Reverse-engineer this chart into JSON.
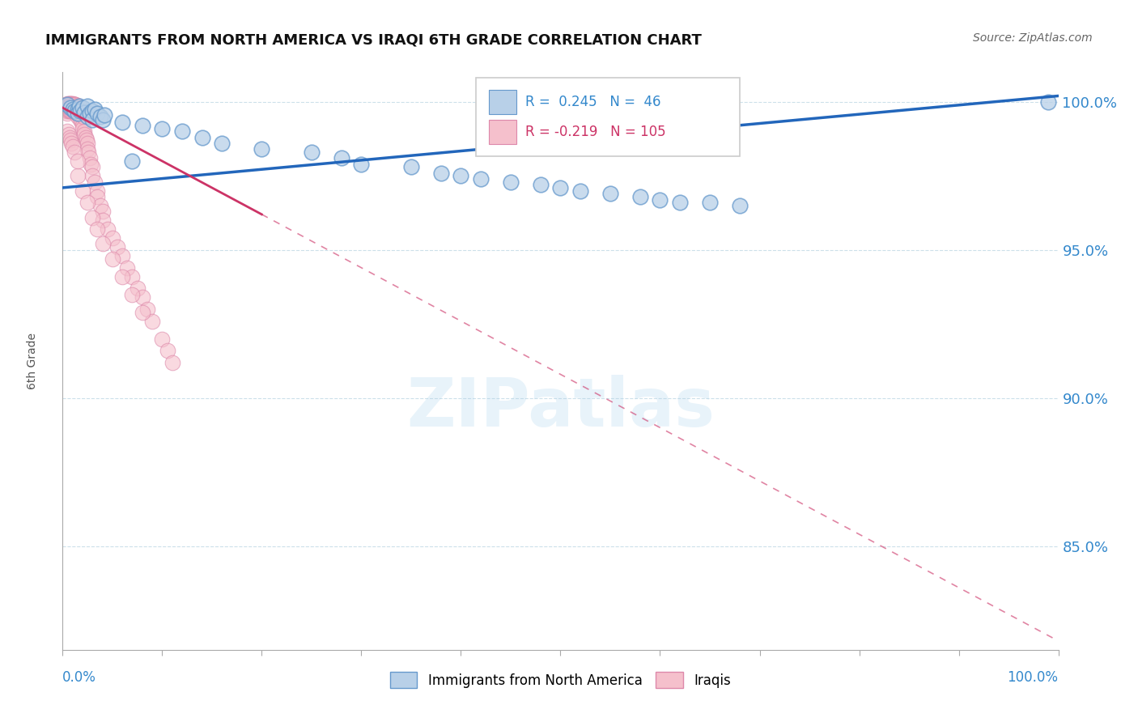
{
  "title": "IMMIGRANTS FROM NORTH AMERICA VS IRAQI 6TH GRADE CORRELATION CHART",
  "source": "Source: ZipAtlas.com",
  "ylabel": "6th Grade",
  "watermark": "ZIPatlas",
  "blue_R": 0.245,
  "blue_N": 46,
  "pink_R": -0.219,
  "pink_N": 105,
  "blue_color": "#b8d0e8",
  "blue_edge": "#6699cc",
  "blue_line_color": "#2266bb",
  "pink_color": "#f5c0cc",
  "pink_edge": "#dd88aa",
  "pink_line_color": "#cc3366",
  "legend_blue_label": "Immigrants from North America",
  "legend_pink_label": "Iraqis",
  "ytick_labels": [
    "100.0%",
    "95.0%",
    "90.0%",
    "85.0%"
  ],
  "ytick_values": [
    1.0,
    0.95,
    0.9,
    0.85
  ],
  "xlim": [
    0.0,
    1.0
  ],
  "ylim": [
    0.815,
    1.01
  ],
  "blue_trend_x0": 0.0,
  "blue_trend_y0": 0.971,
  "blue_trend_x1": 1.0,
  "blue_trend_y1": 1.002,
  "pink_trend_x0": 0.0,
  "pink_trend_y0": 0.998,
  "pink_trend_x1": 1.0,
  "pink_trend_y1": 0.818,
  "blue_scatter_x": [
    0.005,
    0.008,
    0.01,
    0.012,
    0.015,
    0.015,
    0.017,
    0.018,
    0.02,
    0.022,
    0.025,
    0.025,
    0.027,
    0.03,
    0.03,
    0.032,
    0.035,
    0.038,
    0.04,
    0.042,
    0.06,
    0.07,
    0.08,
    0.1,
    0.12,
    0.14,
    0.16,
    0.2,
    0.25,
    0.28,
    0.3,
    0.35,
    0.38,
    0.4,
    0.42,
    0.45,
    0.48,
    0.5,
    0.52,
    0.55,
    0.58,
    0.6,
    0.62,
    0.65,
    0.68,
    0.99
  ],
  "blue_scatter_y": [
    0.999,
    0.998,
    0.9975,
    0.997,
    0.9975,
    0.996,
    0.9985,
    0.997,
    0.998,
    0.9965,
    0.9985,
    0.995,
    0.996,
    0.997,
    0.994,
    0.9975,
    0.996,
    0.995,
    0.994,
    0.9955,
    0.993,
    0.98,
    0.992,
    0.991,
    0.99,
    0.988,
    0.986,
    0.984,
    0.983,
    0.981,
    0.979,
    0.978,
    0.976,
    0.975,
    0.974,
    0.973,
    0.972,
    0.971,
    0.97,
    0.969,
    0.968,
    0.967,
    0.966,
    0.966,
    0.965,
    1.0
  ],
  "pink_scatter_x": [
    0.004,
    0.004,
    0.004,
    0.005,
    0.005,
    0.005,
    0.005,
    0.005,
    0.006,
    0.006,
    0.006,
    0.006,
    0.007,
    0.007,
    0.007,
    0.007,
    0.008,
    0.008,
    0.008,
    0.008,
    0.009,
    0.009,
    0.009,
    0.009,
    0.01,
    0.01,
    0.01,
    0.01,
    0.011,
    0.011,
    0.011,
    0.012,
    0.012,
    0.012,
    0.012,
    0.013,
    0.013,
    0.013,
    0.014,
    0.014,
    0.014,
    0.015,
    0.015,
    0.015,
    0.015,
    0.016,
    0.016,
    0.017,
    0.017,
    0.018,
    0.018,
    0.019,
    0.019,
    0.02,
    0.02,
    0.02,
    0.021,
    0.022,
    0.022,
    0.023,
    0.024,
    0.025,
    0.025,
    0.026,
    0.027,
    0.028,
    0.03,
    0.03,
    0.032,
    0.035,
    0.035,
    0.038,
    0.04,
    0.04,
    0.045,
    0.05,
    0.055,
    0.06,
    0.065,
    0.07,
    0.075,
    0.08,
    0.085,
    0.09,
    0.1,
    0.105,
    0.11,
    0.015,
    0.02,
    0.025,
    0.03,
    0.035,
    0.04,
    0.05,
    0.06,
    0.07,
    0.08,
    0.005,
    0.006,
    0.007,
    0.008,
    0.009,
    0.01,
    0.012,
    0.015
  ],
  "pink_scatter_y": [
    0.999,
    0.998,
    0.997,
    0.9995,
    0.999,
    0.998,
    0.997,
    0.996,
    0.9995,
    0.999,
    0.998,
    0.997,
    0.9995,
    0.999,
    0.998,
    0.997,
    0.9995,
    0.999,
    0.998,
    0.997,
    0.9995,
    0.999,
    0.998,
    0.997,
    0.9995,
    0.999,
    0.998,
    0.997,
    0.9992,
    0.998,
    0.997,
    0.999,
    0.999,
    0.998,
    0.997,
    0.999,
    0.998,
    0.997,
    0.9988,
    0.997,
    0.996,
    0.9985,
    0.997,
    0.996,
    0.995,
    0.998,
    0.996,
    0.9975,
    0.995,
    0.997,
    0.994,
    0.9965,
    0.993,
    0.996,
    0.992,
    0.991,
    0.995,
    0.99,
    0.989,
    0.988,
    0.987,
    0.986,
    0.984,
    0.983,
    0.981,
    0.979,
    0.978,
    0.975,
    0.973,
    0.97,
    0.968,
    0.965,
    0.963,
    0.96,
    0.957,
    0.954,
    0.951,
    0.948,
    0.944,
    0.941,
    0.937,
    0.934,
    0.93,
    0.926,
    0.92,
    0.916,
    0.912,
    0.975,
    0.97,
    0.966,
    0.961,
    0.957,
    0.952,
    0.947,
    0.941,
    0.935,
    0.929,
    0.99,
    0.989,
    0.988,
    0.987,
    0.986,
    0.985,
    0.983,
    0.98
  ]
}
